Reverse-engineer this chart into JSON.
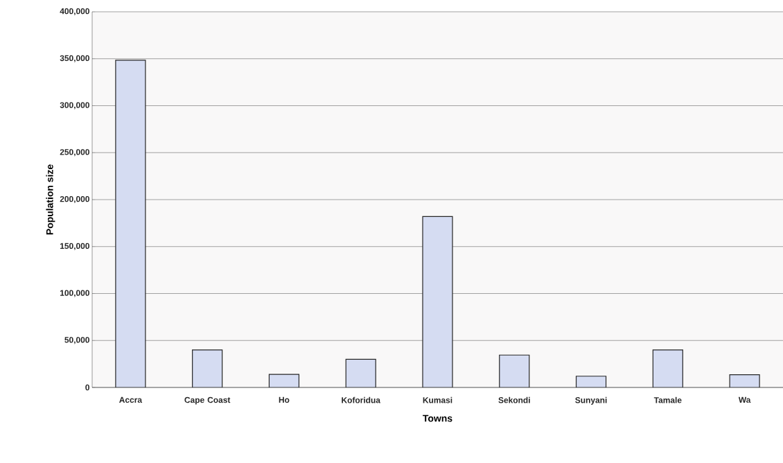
{
  "chart_data": {
    "type": "bar",
    "xlabel": "Towns",
    "ylabel": "Population size",
    "categories": [
      "Accra",
      "Cape Coast",
      "Ho",
      "Koforidua",
      "Kumasi",
      "Sekondi",
      "Sunyani",
      "Tamale",
      "Wa"
    ],
    "values": [
      348500,
      40000,
      14000,
      30000,
      182000,
      34500,
      12000,
      40000,
      13500
    ],
    "color": "#d5dcf2",
    "ylim": [
      0,
      400000
    ],
    "yticks": [
      {
        "value": 0,
        "label": "0"
      },
      {
        "value": 50000,
        "label": "50,000"
      },
      {
        "value": 100000,
        "label": "100,000"
      },
      {
        "value": 150000,
        "label": "150,000"
      },
      {
        "value": 200000,
        "label": "200,000"
      },
      {
        "value": 250000,
        "label": "250,000"
      },
      {
        "value": 300000,
        "label": "300,000"
      },
      {
        "value": 350000,
        "label": "350,000"
      },
      {
        "value": 400000,
        "label": "400,000"
      }
    ],
    "grid": "y",
    "legend": false
  }
}
